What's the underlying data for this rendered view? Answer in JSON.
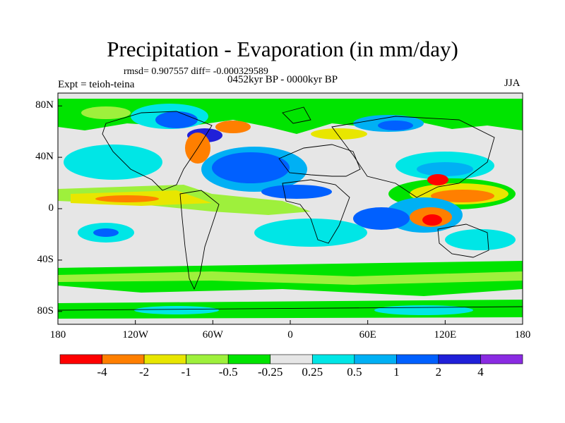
{
  "title": "Precipitation - Evaporation (in mm/day)",
  "stats": "rmsd= 0.907557 diff= -0.000329589",
  "experiment": "Expt = teioh-teina",
  "period": "0452kyr BP - 0000kyr BP",
  "season": "JJA",
  "axes": {
    "x_ticks": [
      "180",
      "120W",
      "60W",
      "0",
      "60E",
      "120E",
      "180"
    ],
    "y_ticks": [
      "80N",
      "40N",
      "0",
      "40S",
      "80S"
    ]
  },
  "colorbar": {
    "labels": [
      "-4",
      "-2",
      "-1",
      "-0.5",
      "-0.25",
      "0.25",
      "0.5",
      "1",
      "2",
      "4"
    ],
    "colors": [
      "#ff0000",
      "#ff7f00",
      "#e8e600",
      "#9ef03c",
      "#00e400",
      "#e6e6e6",
      "#00e6e6",
      "#00b0f4",
      "#0060ff",
      "#2020d8",
      "#8a2be2"
    ]
  }
}
